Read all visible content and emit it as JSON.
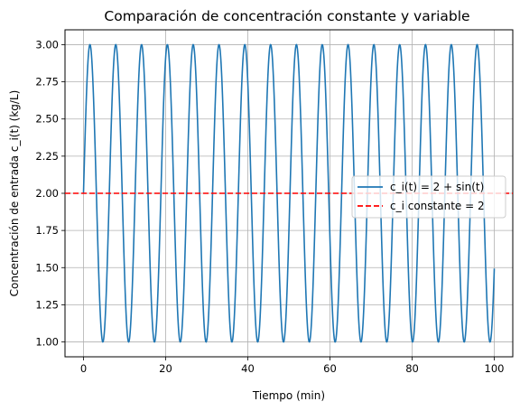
{
  "chart_data": {
    "type": "line",
    "title": "Comparación de concentración constante y variable",
    "xlabel": "Tiempo (min)",
    "ylabel": "Concentración de entrada c_i(t) (kg/L)",
    "xlim": [
      -4.5,
      104.5
    ],
    "ylim": [
      0.9,
      3.1
    ],
    "xticks": [
      0,
      20,
      40,
      60,
      80,
      100
    ],
    "xtick_labels": [
      "0",
      "20",
      "40",
      "60",
      "80",
      "100"
    ],
    "yticks": [
      1.0,
      1.25,
      1.5,
      1.75,
      2.0,
      2.25,
      2.5,
      2.75,
      3.0
    ],
    "ytick_labels": [
      "1.00",
      "1.25",
      "1.50",
      "1.75",
      "2.00",
      "2.25",
      "2.50",
      "2.75",
      "3.00"
    ],
    "grid": true,
    "legend_position": "center-right",
    "series": [
      {
        "name": "c_i(t) = 2 + sin(t)",
        "function": "2 + sin(t)",
        "x_range": [
          0,
          100
        ],
        "color": "#1f77b4",
        "style": "solid"
      },
      {
        "name": "c_i constante = 2",
        "function": "2",
        "color": "#ff0000",
        "style": "dashed"
      }
    ]
  }
}
